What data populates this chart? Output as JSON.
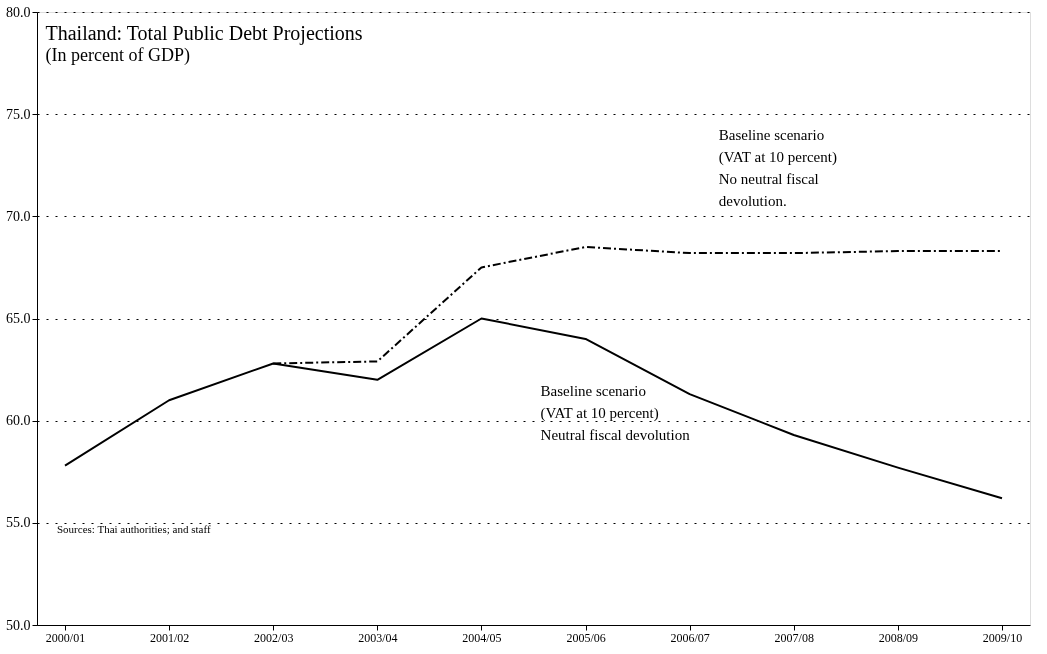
{
  "chart_data": {
    "type": "line",
    "title": "Thailand: Total Public Debt Projections",
    "subtitle": "(In percent of GDP)",
    "categories": [
      "2000/01",
      "2001/02",
      "2002/03",
      "2003/04",
      "2004/05",
      "2005/06",
      "2006/07",
      "2007/08",
      "2008/09",
      "2009/10"
    ],
    "series": [
      {
        "name": "Baseline scenario\n (VAT at 10 percent)\nNo neutral fiscal\ndevolution.",
        "color": "#000000",
        "line_style": "dashed",
        "values": [
          null,
          null,
          62.8,
          62.9,
          67.5,
          68.5,
          68.2,
          68.2,
          68.3,
          68.3
        ]
      },
      {
        "name": "Baseline scenario\n (VAT at 10 percent)\nNeutral fiscal devolution",
        "color": "#000000",
        "line_style": "solid",
        "values": [
          57.8,
          61.0,
          62.8,
          62.0,
          65.0,
          64.0,
          61.3,
          59.3,
          57.7,
          56.2
        ]
      }
    ],
    "ylim": [
      50,
      80
    ],
    "yticks": [
      {
        "value": 50,
        "label": "50.0"
      },
      {
        "value": 55,
        "label": "55.0"
      },
      {
        "value": 60,
        "label": "60.0"
      },
      {
        "value": 65,
        "label": "65.0"
      },
      {
        "value": 70,
        "label": "70.0"
      },
      {
        "value": 75,
        "label": "75.0"
      },
      {
        "value": 80,
        "label": "80.0"
      }
    ],
    "grid": "y",
    "legend": false,
    "marker": "none",
    "annotations": [
      "Sources: Thai authorities; and staff"
    ]
  }
}
